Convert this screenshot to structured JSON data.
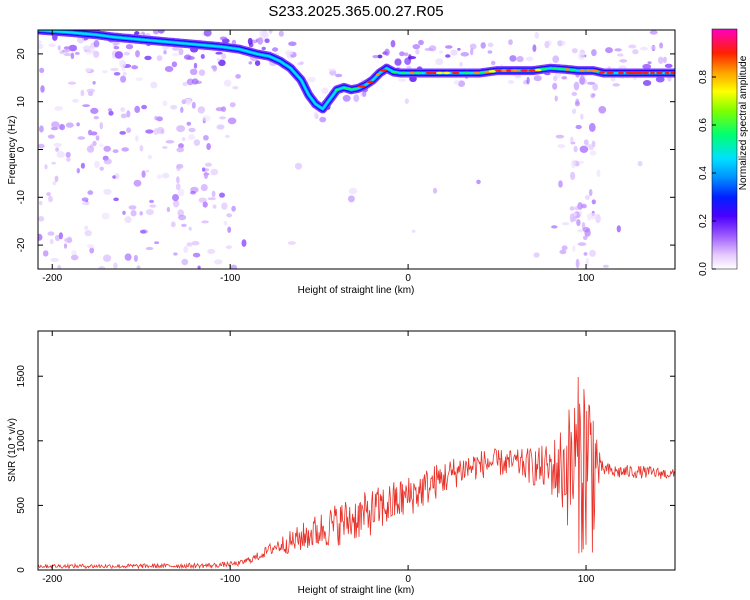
{
  "title": "S233.2025.365.00.27.R05",
  "chart_data": [
    {
      "type": "heatmap",
      "xlabel": "Height of straight line (km)",
      "ylabel": "Frequency (Hz)",
      "xlim": [
        -208,
        150
      ],
      "ylim": [
        -25,
        25
      ],
      "xticks": [
        -200,
        -100,
        0,
        100
      ],
      "xtick_labels": [
        "-200",
        "-100",
        "0",
        "100"
      ],
      "yticks": [
        -20,
        -10,
        0,
        10,
        20
      ],
      "ytick_labels": [
        "-20",
        "-10",
        "0",
        "10",
        "20"
      ],
      "colorbar": {
        "label": "Normalized spectral amplitude",
        "range": [
          0,
          1
        ],
        "ticks": [
          0.0,
          0.2,
          0.4,
          0.6,
          0.8
        ],
        "tick_labels": [
          "0.0",
          "0.2",
          "0.4",
          "0.6",
          "0.8"
        ]
      },
      "ridge": {
        "x": [
          -208,
          -190,
          -175,
          -165,
          -150,
          -135,
          -120,
          -105,
          -95,
          -85,
          -78,
          -72,
          -66,
          -60,
          -56,
          -52,
          -48,
          -44,
          -40,
          -36,
          -32,
          -28,
          -24,
          -20,
          -16,
          -12,
          -8,
          -4,
          0,
          10,
          20,
          30,
          40,
          50,
          60,
          70,
          80,
          88,
          96,
          104,
          110,
          120,
          130,
          140,
          150
        ],
        "y": [
          25,
          24.5,
          24,
          23.5,
          23,
          22.5,
          22,
          21.5,
          21,
          20,
          19.5,
          18.5,
          17,
          14.5,
          11.5,
          9.5,
          8.5,
          10.5,
          12.5,
          13.0,
          12.5,
          12.8,
          13.5,
          14.5,
          16,
          17,
          16.2,
          16,
          16,
          16,
          16,
          16,
          16,
          16.5,
          16.5,
          16.5,
          17,
          16.8,
          16.5,
          16.5,
          16,
          16,
          16,
          16,
          16
        ]
      }
    },
    {
      "type": "line",
      "xlabel": "Height of straight line (km)",
      "ylabel": "SNR (10 * v/v)",
      "xlim": [
        -208,
        150
      ],
      "ylim": [
        0,
        1850
      ],
      "xticks": [
        -200,
        -100,
        0,
        100
      ],
      "xtick_labels": [
        "-200",
        "-100",
        "0",
        "100"
      ],
      "yticks": [
        0,
        500,
        1000,
        1500
      ],
      "ytick_labels": [
        "0",
        "500",
        "1000",
        "1500"
      ],
      "series": [
        {
          "name": "SNR",
          "color": "#e8322a",
          "envelope_x": [
            -208,
            -150,
            -110,
            -95,
            -85,
            -75,
            -65,
            -55,
            -45,
            -35,
            -25,
            -15,
            -5,
            5,
            15,
            30,
            45,
            60,
            75,
            85,
            92,
            100,
            106,
            115,
            130,
            150
          ],
          "envelope_y": [
            30,
            30,
            35,
            50,
            100,
            180,
            220,
            280,
            330,
            380,
            420,
            480,
            540,
            600,
            680,
            780,
            830,
            830,
            790,
            780,
            800,
            850,
            800,
            760,
            760,
            740
          ],
          "spread_x": [
            -208,
            -95,
            -80,
            -60,
            -40,
            -20,
            0,
            30,
            60,
            80,
            88,
            94,
            100,
            104,
            108,
            150
          ],
          "spread_y": [
            15,
            20,
            40,
            110,
            170,
            180,
            160,
            120,
            100,
            200,
            400,
            650,
            800,
            700,
            60,
            40
          ]
        }
      ]
    }
  ]
}
